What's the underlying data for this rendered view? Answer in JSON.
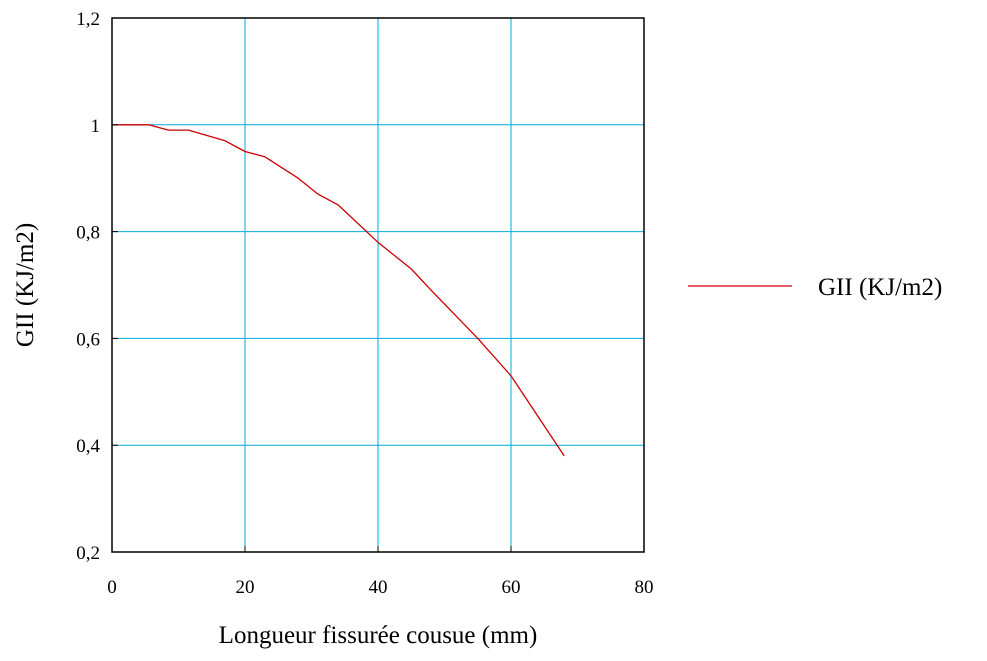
{
  "chart_data": {
    "type": "line",
    "title": "",
    "xlabel": "Longueur fissurée cousue (mm)",
    "ylabel": "GII (KJ/m2)",
    "xlim": [
      0,
      80
    ],
    "ylim": [
      0.2,
      1.2
    ],
    "x_ticks": [
      0,
      20,
      40,
      60,
      80
    ],
    "y_ticks": [
      0.2,
      0.4,
      0.6,
      0.8,
      1,
      1.2
    ],
    "x_tick_labels": [
      "0",
      "20",
      "40",
      "60",
      "80"
    ],
    "y_tick_labels": [
      "0,2",
      "0,4",
      "0,6",
      "0,8",
      "1",
      "1,2"
    ],
    "grid": true,
    "legend_position": "right",
    "colors": {
      "series": "#cc0000",
      "grid": "#00aadd",
      "axes": "#000000"
    },
    "series": [
      {
        "name": "GII (KJ/m2)",
        "x": [
          0,
          5.5,
          8.5,
          11.5,
          17,
          20,
          23,
          28,
          31,
          34,
          40,
          45,
          48,
          55,
          60,
          68
        ],
        "y": [
          1.0,
          1.0,
          0.99,
          0.99,
          0.97,
          0.95,
          0.94,
          0.9,
          0.87,
          0.85,
          0.78,
          0.73,
          0.69,
          0.6,
          0.53,
          0.38
        ]
      }
    ]
  }
}
